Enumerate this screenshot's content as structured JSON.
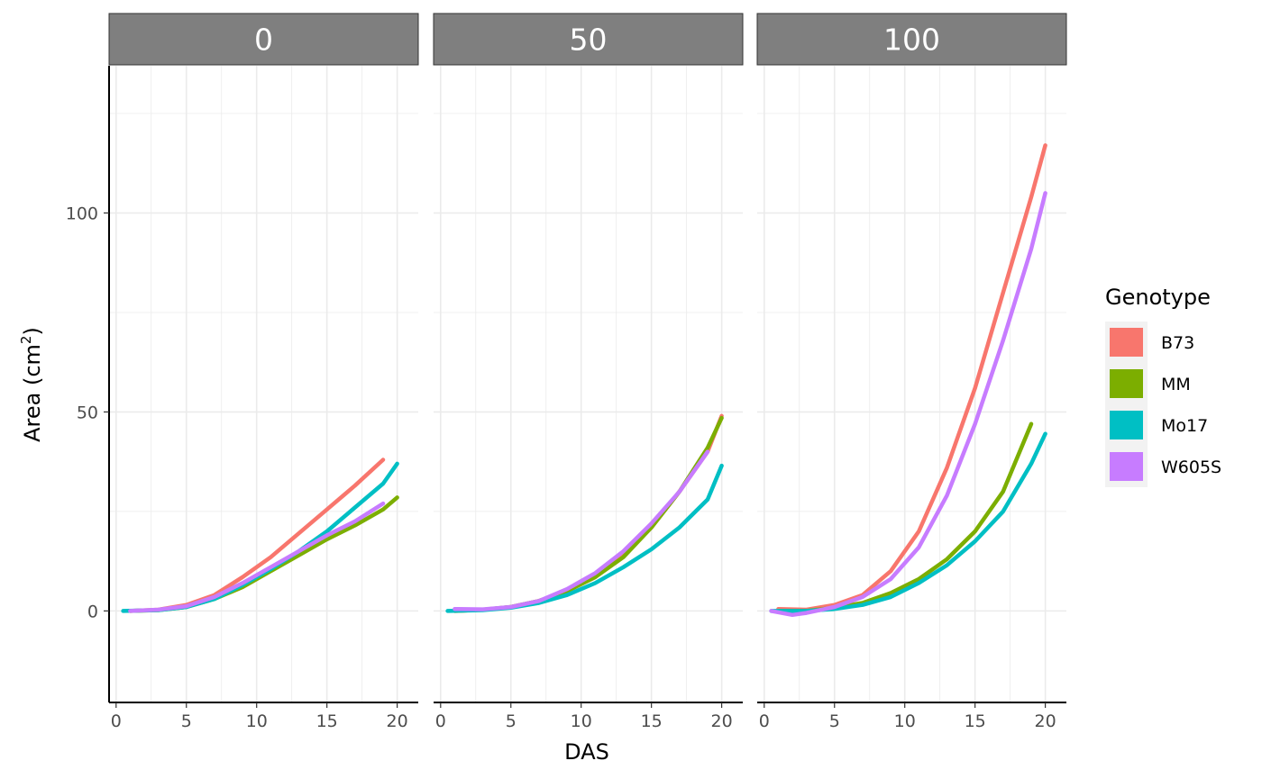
{
  "chart_data": {
    "type": "line",
    "facet_variable_values": [
      "0",
      "50",
      "100"
    ],
    "xlabel": "DAS",
    "ylabel_prefix": "Area (cm",
    "ylabel_superscript": "2",
    "ylabel_suffix": ")",
    "xlim": [
      -0.5,
      21.5
    ],
    "ylim": [
      -23,
      137
    ],
    "x_ticks": [
      0,
      5,
      10,
      15,
      20
    ],
    "y_ticks": [
      0,
      50,
      100
    ],
    "grid": true,
    "legend": {
      "title": "Genotype",
      "placement": "right"
    },
    "series": [
      {
        "name": "B73",
        "color": "#F8766D"
      },
      {
        "name": "MM",
        "color": "#7CAE00"
      },
      {
        "name": "Mo17",
        "color": "#00BFC4"
      },
      {
        "name": "W605S",
        "color": "#C77CFF"
      }
    ],
    "panels": [
      {
        "facet": "0",
        "fits": [
          {
            "series": "B73",
            "x": [
              1,
              3,
              5,
              7,
              9,
              11,
              13,
              15,
              17,
              19
            ],
            "y": [
              0,
              0.3,
              1.5,
              4,
              8.5,
              13.5,
              19.5,
              25.5,
              31.5,
              38
            ]
          },
          {
            "series": "MM",
            "x": [
              1,
              3,
              5,
              7,
              9,
              11,
              13,
              15,
              17,
              19,
              20
            ],
            "y": [
              0,
              0.2,
              1,
              3,
              6,
              10,
              14,
              18,
              21.5,
              25.5,
              28.5
            ]
          },
          {
            "series": "Mo17",
            "x": [
              0.5,
              3,
              5,
              7,
              9,
              11,
              13,
              15,
              17,
              19,
              20
            ],
            "y": [
              0,
              0.2,
              1,
              3,
              6.5,
              10.5,
              15,
              20,
              26,
              32,
              37
            ]
          },
          {
            "series": "W605S",
            "x": [
              1,
              3,
              5,
              7,
              9,
              11,
              13,
              15,
              17,
              19
            ],
            "y": [
              0,
              0.3,
              1.2,
              3.5,
              7,
              11,
              15,
              19,
              22.5,
              27
            ]
          }
        ]
      },
      {
        "facet": "50",
        "fits": [
          {
            "series": "B73",
            "x": [
              1,
              3,
              5,
              7,
              9,
              11,
              13,
              15,
              17,
              19,
              20
            ],
            "y": [
              0,
              0.3,
              1,
              2.5,
              5,
              8.5,
              14,
              21,
              30,
              40,
              49
            ]
          },
          {
            "series": "MM",
            "x": [
              1,
              3,
              5,
              7,
              9,
              11,
              13,
              15,
              17,
              19,
              20
            ],
            "y": [
              0,
              0.3,
              1,
              2.5,
              5,
              8.5,
              13.5,
              21,
              30,
              41,
              48.5
            ]
          },
          {
            "series": "Mo17",
            "x": [
              0.5,
              3,
              5,
              7,
              9,
              11,
              13,
              15,
              17,
              19,
              20
            ],
            "y": [
              0,
              0.2,
              0.8,
              2,
              4,
              7,
              11,
              15.5,
              21,
              28,
              36.5
            ]
          },
          {
            "series": "W605S",
            "x": [
              1,
              3,
              5,
              7,
              9,
              11,
              13,
              15,
              17,
              19
            ],
            "y": [
              0.5,
              0.4,
              1,
              2.5,
              5.5,
              9.5,
              15,
              22,
              30,
              40
            ]
          }
        ]
      },
      {
        "facet": "100",
        "fits": [
          {
            "series": "B73",
            "x": [
              1,
              3,
              5,
              7,
              9,
              11,
              13,
              15,
              17,
              19,
              20
            ],
            "y": [
              0.5,
              0.3,
              1.5,
              4,
              10,
              20,
              36,
              56,
              80,
              104,
              117
            ]
          },
          {
            "series": "MM",
            "x": [
              1,
              3,
              5,
              7,
              9,
              11,
              13,
              15,
              17,
              19
            ],
            "y": [
              0,
              0,
              0.8,
              2,
              4.5,
              8,
              13,
              20,
              30,
              47
            ]
          },
          {
            "series": "Mo17",
            "x": [
              0.5,
              3,
              5,
              7,
              9,
              11,
              13,
              15,
              17,
              19,
              20
            ],
            "y": [
              0,
              0,
              0.5,
              1.5,
              3.5,
              7,
              11.5,
              17.5,
              25,
              37,
              44.5
            ]
          },
          {
            "series": "W605S",
            "x": [
              0.5,
              2,
              3,
              5,
              7,
              9,
              11,
              13,
              15,
              17,
              19,
              20
            ],
            "y": [
              0,
              -1,
              -0.5,
              1,
              3.5,
              8,
              16,
              29,
              47,
              68,
              91,
              105
            ]
          }
        ]
      }
    ]
  }
}
